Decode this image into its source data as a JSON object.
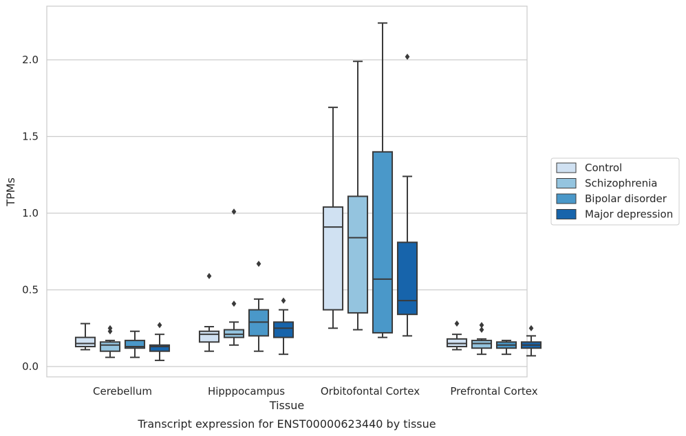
{
  "chart_data": {
    "type": "box",
    "title": "",
    "caption": "Transcript expression for ENST00000623440 by tissue",
    "xlabel": "Tissue",
    "ylabel": "TPMs",
    "ylim": [
      -0.07,
      2.35
    ],
    "yticks": [
      "0.0",
      "0.5",
      "1.0",
      "1.5",
      "2.0"
    ],
    "categories": [
      "Cerebellum",
      "Hipppocampus",
      "Orbitofontal Cortex",
      "Prefrontal Cortex"
    ],
    "grid": "horizontal",
    "legend_position": "right",
    "series": [
      {
        "name": "Control",
        "color": "#d0e1f2",
        "boxes": [
          {
            "whislo": 0.11,
            "q1": 0.13,
            "med": 0.15,
            "q3": 0.19,
            "whishi": 0.28,
            "fliers": []
          },
          {
            "whislo": 0.1,
            "q1": 0.16,
            "med": 0.21,
            "q3": 0.23,
            "whishi": 0.26,
            "fliers": [
              0.59
            ]
          },
          {
            "whislo": 0.25,
            "q1": 0.37,
            "med": 0.91,
            "q3": 1.04,
            "whishi": 1.69,
            "fliers": []
          },
          {
            "whislo": 0.11,
            "q1": 0.13,
            "med": 0.15,
            "q3": 0.18,
            "whishi": 0.21,
            "fliers": [
              0.28
            ]
          }
        ]
      },
      {
        "name": "Schizophrenia",
        "color": "#94c4df",
        "boxes": [
          {
            "whislo": 0.06,
            "q1": 0.1,
            "med": 0.14,
            "q3": 0.16,
            "whishi": 0.17,
            "fliers": [
              0.23,
              0.25
            ]
          },
          {
            "whislo": 0.14,
            "q1": 0.19,
            "med": 0.21,
            "q3": 0.24,
            "whishi": 0.29,
            "fliers": [
              0.41,
              1.01
            ]
          },
          {
            "whislo": 0.24,
            "q1": 0.35,
            "med": 0.84,
            "q3": 1.11,
            "whishi": 1.99,
            "fliers": []
          },
          {
            "whislo": 0.08,
            "q1": 0.12,
            "med": 0.15,
            "q3": 0.17,
            "whishi": 0.18,
            "fliers": [
              0.24,
              0.27
            ]
          }
        ]
      },
      {
        "name": "Bipolar disorder",
        "color": "#4a98c9",
        "boxes": [
          {
            "whislo": 0.06,
            "q1": 0.12,
            "med": 0.13,
            "q3": 0.17,
            "whishi": 0.23,
            "fliers": []
          },
          {
            "whislo": 0.1,
            "q1": 0.2,
            "med": 0.29,
            "q3": 0.37,
            "whishi": 0.44,
            "fliers": [
              0.67
            ]
          },
          {
            "whislo": 0.19,
            "q1": 0.22,
            "med": 0.57,
            "q3": 1.4,
            "whishi": 2.24,
            "fliers": []
          },
          {
            "whislo": 0.08,
            "q1": 0.12,
            "med": 0.14,
            "q3": 0.16,
            "whishi": 0.17,
            "fliers": []
          }
        ]
      },
      {
        "name": "Major depression",
        "color": "#1764ab",
        "boxes": [
          {
            "whislo": 0.04,
            "q1": 0.1,
            "med": 0.13,
            "q3": 0.14,
            "whishi": 0.21,
            "fliers": [
              0.27
            ]
          },
          {
            "whislo": 0.08,
            "q1": 0.19,
            "med": 0.25,
            "q3": 0.29,
            "whishi": 0.37,
            "fliers": [
              0.43
            ]
          },
          {
            "whislo": 0.2,
            "q1": 0.34,
            "med": 0.43,
            "q3": 0.81,
            "whishi": 1.24,
            "fliers": [
              2.02
            ]
          },
          {
            "whislo": 0.07,
            "q1": 0.12,
            "med": 0.14,
            "q3": 0.16,
            "whishi": 0.2,
            "fliers": [
              0.25
            ]
          }
        ]
      }
    ]
  }
}
